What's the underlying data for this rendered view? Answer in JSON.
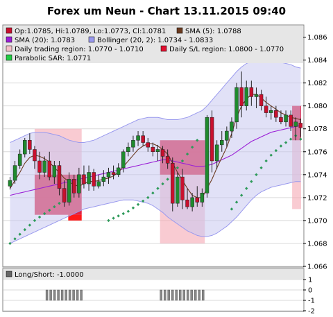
{
  "title": "Forex um Neun - Chart 13.11.2015 09:40",
  "colors": {
    "bull": "#1f8a2e",
    "bear": "#c8102e",
    "sma5": "#6b3a1f",
    "sma20": "#9a1ed6",
    "bollinger_fill": "#c8c8f0",
    "bollinger_line": "#9999ee",
    "trading_region": "#f5a9b4",
    "sl_region": "#e01030",
    "sar": "#2e9a5a",
    "plot_bg": "#ffffff",
    "grid": "#d9d9d9",
    "legend_bg": "#e6e6e6",
    "pos_bar": "#888888"
  },
  "legend": [
    {
      "icon": "candle-swatch",
      "color": "#c8102e",
      "text": "Op:1.0785, Hi:1.0789, Lo:1.0773, Cl:1.0781"
    },
    {
      "icon": "sma5-swatch",
      "color": "#6b3a1f",
      "text": "SMA (5): 1.0788"
    },
    {
      "icon": "sma20-swatch",
      "color": "#9a1ed6",
      "text": "SMA (20): 1.0783"
    },
    {
      "icon": "bollinger-swatch",
      "color": "#9999ee",
      "text": "Bollinger (20, 2): 1.0734 - 1.0833"
    },
    {
      "icon": "trading-region-swatch",
      "color": "#f5c0c8",
      "text": "Daily trading region: 1.0770 - 1.0710"
    },
    {
      "icon": "sl-region-swatch",
      "color": "#e01030",
      "text": "Daily S/L region: 1.0800 - 1.0770"
    },
    {
      "icon": "sar-swatch",
      "color": "#22cc44",
      "text": "Parabolic SAR: 1.0771"
    }
  ],
  "lower_legend": {
    "icon": "long-short-swatch",
    "color": "#666666",
    "text": "Long/Short: -1.0000"
  },
  "chart_data": [
    {
      "type": "candlestick",
      "title": "Forex um Neun - Chart 13.11.2015 09:40",
      "ylim": [
        1.066,
        1.087
      ],
      "y_ticks": [
        "1.066",
        "1.068",
        "1.070",
        "1.072",
        "1.074",
        "1.076",
        "1.078",
        "1.080",
        "1.082",
        "1.084",
        "1.086"
      ],
      "grid": true,
      "x_count": 60,
      "candles": [
        {
          "o": 1.073,
          "h": 1.0738,
          "l": 1.0727,
          "c": 1.0735
        },
        {
          "o": 1.0735,
          "h": 1.0752,
          "l": 1.0732,
          "c": 1.0748
        },
        {
          "o": 1.0748,
          "h": 1.0762,
          "l": 1.0745,
          "c": 1.0758
        },
        {
          "o": 1.0758,
          "h": 1.0772,
          "l": 1.0755,
          "c": 1.077
        },
        {
          "o": 1.077,
          "h": 1.0776,
          "l": 1.0758,
          "c": 1.0762
        },
        {
          "o": 1.0762,
          "h": 1.0765,
          "l": 1.0745,
          "c": 1.0752
        },
        {
          "o": 1.0752,
          "h": 1.076,
          "l": 1.0736,
          "c": 1.0742
        },
        {
          "o": 1.0742,
          "h": 1.0756,
          "l": 1.0738,
          "c": 1.0752
        },
        {
          "o": 1.0752,
          "h": 1.076,
          "l": 1.0735,
          "c": 1.0738
        },
        {
          "o": 1.0738,
          "h": 1.0752,
          "l": 1.0732,
          "c": 1.0748
        },
        {
          "o": 1.0748,
          "h": 1.0752,
          "l": 1.0722,
          "c": 1.0728
        },
        {
          "o": 1.0728,
          "h": 1.0735,
          "l": 1.0712,
          "c": 1.0716
        },
        {
          "o": 1.0716,
          "h": 1.0742,
          "l": 1.0713,
          "c": 1.0736
        },
        {
          "o": 1.0736,
          "h": 1.074,
          "l": 1.072,
          "c": 1.0724
        },
        {
          "o": 1.0724,
          "h": 1.0746,
          "l": 1.072,
          "c": 1.074
        },
        {
          "o": 1.074,
          "h": 1.0748,
          "l": 1.0728,
          "c": 1.0732
        },
        {
          "o": 1.0732,
          "h": 1.0748,
          "l": 1.0726,
          "c": 1.0742
        },
        {
          "o": 1.0742,
          "h": 1.0745,
          "l": 1.0726,
          "c": 1.073
        },
        {
          "o": 1.073,
          "h": 1.074,
          "l": 1.0728,
          "c": 1.0734
        },
        {
          "o": 1.0734,
          "h": 1.0744,
          "l": 1.073,
          "c": 1.0738
        },
        {
          "o": 1.0738,
          "h": 1.0746,
          "l": 1.0732,
          "c": 1.0742
        },
        {
          "o": 1.0742,
          "h": 1.0748,
          "l": 1.0736,
          "c": 1.074
        },
        {
          "o": 1.074,
          "h": 1.075,
          "l": 1.0738,
          "c": 1.0746
        },
        {
          "o": 1.0746,
          "h": 1.0762,
          "l": 1.0742,
          "c": 1.076
        },
        {
          "o": 1.076,
          "h": 1.0768,
          "l": 1.0756,
          "c": 1.0764
        },
        {
          "o": 1.0764,
          "h": 1.0774,
          "l": 1.076,
          "c": 1.077
        },
        {
          "o": 1.077,
          "h": 1.0778,
          "l": 1.0765,
          "c": 1.0774
        },
        {
          "o": 1.0774,
          "h": 1.0778,
          "l": 1.0765,
          "c": 1.0768
        },
        {
          "o": 1.0768,
          "h": 1.0772,
          "l": 1.076,
          "c": 1.0764
        },
        {
          "o": 1.0764,
          "h": 1.0768,
          "l": 1.0756,
          "c": 1.076
        },
        {
          "o": 1.076,
          "h": 1.0766,
          "l": 1.0752,
          "c": 1.0762
        },
        {
          "o": 1.0762,
          "h": 1.0765,
          "l": 1.075,
          "c": 1.0756
        },
        {
          "o": 1.0756,
          "h": 1.0762,
          "l": 1.0745,
          "c": 1.075
        },
        {
          "o": 1.075,
          "h": 1.0755,
          "l": 1.0708,
          "c": 1.0715
        },
        {
          "o": 1.0715,
          "h": 1.0742,
          "l": 1.0712,
          "c": 1.0738
        },
        {
          "o": 1.0738,
          "h": 1.0745,
          "l": 1.071,
          "c": 1.0718
        },
        {
          "o": 1.0718,
          "h": 1.0728,
          "l": 1.071,
          "c": 1.0712
        },
        {
          "o": 1.0712,
          "h": 1.0724,
          "l": 1.0708,
          "c": 1.072
        },
        {
          "o": 1.072,
          "h": 1.073,
          "l": 1.0712,
          "c": 1.0716
        },
        {
          "o": 1.0716,
          "h": 1.0728,
          "l": 1.0712,
          "c": 1.0724
        },
        {
          "o": 1.0724,
          "h": 1.0792,
          "l": 1.072,
          "c": 1.079
        },
        {
          "o": 1.079,
          "h": 1.0796,
          "l": 1.0742,
          "c": 1.0752
        },
        {
          "o": 1.0752,
          "h": 1.077,
          "l": 1.0745,
          "c": 1.0766
        },
        {
          "o": 1.0766,
          "h": 1.0778,
          "l": 1.076,
          "c": 1.077
        },
        {
          "o": 1.077,
          "h": 1.0782,
          "l": 1.0764,
          "c": 1.0778
        },
        {
          "o": 1.0778,
          "h": 1.079,
          "l": 1.0772,
          "c": 1.0786
        },
        {
          "o": 1.0786,
          "h": 1.082,
          "l": 1.078,
          "c": 1.0816
        },
        {
          "o": 1.0816,
          "h": 1.083,
          "l": 1.079,
          "c": 1.08
        },
        {
          "o": 1.08,
          "h": 1.0822,
          "l": 1.0796,
          "c": 1.0816
        },
        {
          "o": 1.0816,
          "h": 1.0822,
          "l": 1.08,
          "c": 1.0808
        },
        {
          "o": 1.0808,
          "h": 1.0816,
          "l": 1.0798,
          "c": 1.081
        },
        {
          "o": 1.081,
          "h": 1.0814,
          "l": 1.0796,
          "c": 1.08
        },
        {
          "o": 1.08,
          "h": 1.0808,
          "l": 1.079,
          "c": 1.0794
        },
        {
          "o": 1.0794,
          "h": 1.08,
          "l": 1.0788,
          "c": 1.0796
        },
        {
          "o": 1.0796,
          "h": 1.08,
          "l": 1.0786,
          "c": 1.079
        },
        {
          "o": 1.079,
          "h": 1.0796,
          "l": 1.0784,
          "c": 1.0786
        },
        {
          "o": 1.0786,
          "h": 1.0796,
          "l": 1.0782,
          "c": 1.0792
        },
        {
          "o": 1.0792,
          "h": 1.0796,
          "l": 1.0778,
          "c": 1.0782
        },
        {
          "o": 1.0782,
          "h": 1.079,
          "l": 1.077,
          "c": 1.0786
        },
        {
          "o": 1.0785,
          "h": 1.0789,
          "l": 1.0773,
          "c": 1.0781
        }
      ],
      "sma5": [
        1.0728,
        1.0735,
        1.0742,
        1.075,
        1.0755,
        1.0757,
        1.0756,
        1.0754,
        1.0751,
        1.0746,
        1.0742,
        1.0737,
        1.0734,
        1.0731,
        1.073,
        1.0732,
        1.0734,
        1.0734,
        1.0735,
        1.0736,
        1.0737,
        1.0739,
        1.0742,
        1.0747,
        1.0752,
        1.0757,
        1.0762,
        1.0765,
        1.0767,
        1.0767,
        1.0765,
        1.0762,
        1.0758,
        1.075,
        1.0742,
        1.0735,
        1.0728,
        1.0722,
        1.072,
        1.072,
        1.0728,
        1.0736,
        1.0746,
        1.0755,
        1.0764,
        1.0776,
        1.079,
        1.08,
        1.0806,
        1.081,
        1.081,
        1.0807,
        1.0803,
        1.08,
        1.0797,
        1.0794,
        1.0792,
        1.079,
        1.0789,
        1.0788
      ],
      "sma20": [
        1.0722,
        1.0723,
        1.0724,
        1.0725,
        1.0726,
        1.0727,
        1.0728,
        1.0729,
        1.073,
        1.0731,
        1.0732,
        1.0733,
        1.0734,
        1.0735,
        1.0736,
        1.0737,
        1.0738,
        1.0739,
        1.074,
        1.0741,
        1.0742,
        1.0743,
        1.0744,
        1.0745,
        1.0746,
        1.0747,
        1.0748,
        1.0749,
        1.075,
        1.0751,
        1.0752,
        1.0753,
        1.0753,
        1.0752,
        1.0751,
        1.075,
        1.0749,
        1.0748,
        1.0747,
        1.0747,
        1.0748,
        1.0749,
        1.0751,
        1.0753,
        1.0755,
        1.0757,
        1.076,
        1.0763,
        1.0766,
        1.0769,
        1.0771,
        1.0773,
        1.0775,
        1.0777,
        1.0778,
        1.0779,
        1.078,
        1.0781,
        1.0782,
        1.0783
      ],
      "bb_upper": [
        1.0768,
        1.077,
        1.0772,
        1.0774,
        1.0776,
        1.0777,
        1.0777,
        1.0777,
        1.0776,
        1.0775,
        1.0774,
        1.0772,
        1.077,
        1.0769,
        1.0768,
        1.0768,
        1.0769,
        1.077,
        1.0772,
        1.0774,
        1.0776,
        1.0778,
        1.078,
        1.0782,
        1.0784,
        1.0786,
        1.0788,
        1.0789,
        1.079,
        1.079,
        1.079,
        1.0789,
        1.0788,
        1.0788,
        1.0788,
        1.0789,
        1.079,
        1.0792,
        1.0794,
        1.0796,
        1.08,
        1.0805,
        1.081,
        1.0815,
        1.082,
        1.0825,
        1.083,
        1.0834,
        1.0837,
        1.0839,
        1.084,
        1.0841,
        1.0841,
        1.084,
        1.0839,
        1.0838,
        1.0837,
        1.0836,
        1.0834,
        1.0833
      ],
      "bb_lower": [
        1.068,
        1.0682,
        1.0684,
        1.0686,
        1.0688,
        1.069,
        1.0692,
        1.0694,
        1.0696,
        1.0698,
        1.07,
        1.0702,
        1.0704,
        1.0706,
        1.0708,
        1.071,
        1.0711,
        1.0712,
        1.0713,
        1.0714,
        1.0715,
        1.0716,
        1.0717,
        1.0718,
        1.0718,
        1.0718,
        1.0717,
        1.0716,
        1.0715,
        1.0713,
        1.071,
        1.0707,
        1.0703,
        1.07,
        1.0697,
        1.0694,
        1.0691,
        1.0689,
        1.0687,
        1.0686,
        1.0686,
        1.0687,
        1.0689,
        1.0692,
        1.0695,
        1.0699,
        1.0703,
        1.0708,
        1.0713,
        1.0718,
        1.0722,
        1.0725,
        1.0727,
        1.0729,
        1.073,
        1.0731,
        1.0732,
        1.0733,
        1.0734,
        1.0734
      ],
      "sar": [
        1.068,
        1.0684,
        1.0688,
        1.0692,
        1.0696,
        1.07,
        1.0703,
        1.0706,
        1.0709,
        1.0712,
        1.0715,
        1.0718,
        1.0721,
        null,
        null,
        null,
        null,
        null,
        null,
        null,
        1.07,
        1.0702,
        1.0704,
        1.0706,
        1.0708,
        1.0711,
        1.0714,
        1.0717,
        1.072,
        1.0724,
        1.0728,
        1.0732,
        1.0736,
        1.074,
        1.0746,
        1.0752,
        1.0758,
        1.0764,
        1.077,
        null,
        null,
        null,
        null,
        null,
        null,
        1.071,
        1.0716,
        1.0722,
        1.0728,
        1.0734,
        1.074,
        1.0746,
        1.0752,
        1.0757,
        1.0761,
        1.0765,
        1.0768,
        1.0771,
        1.0774,
        1.0771
      ],
      "regions": [
        {
          "name": "trading-region",
          "x_from": 13,
          "x_to": 34,
          "y_high": 1.078,
          "y_low": 1.0705,
          "color": "#f5a9b4"
        },
        {
          "name": "sl-region",
          "x_from": 13,
          "x_to": 34,
          "y_high": 1.074,
          "y_low": 1.0705,
          "color": "#e01030"
        },
        {
          "name": "sl-region-tail",
          "x_from": 28,
          "x_to": 34,
          "y_high": 1.0705,
          "y_low": 1.07,
          "color": "#ff0000"
        },
        {
          "name": "trading-region",
          "x_from": 69,
          "x_to": 89,
          "y_high": 1.077,
          "y_low": 1.068,
          "color": "#f5a9b4"
        },
        {
          "name": "sl-region",
          "x_from": 69,
          "x_to": 89,
          "y_high": 1.077,
          "y_low": 1.074,
          "color": "#e01030"
        },
        {
          "name": "trading-region",
          "x_from": 128,
          "x_to": 132,
          "y_high": 1.08,
          "y_low": 1.071,
          "color": "#f5a9b4"
        },
        {
          "name": "sl-region",
          "x_from": 128,
          "x_to": 132,
          "y_high": 1.08,
          "y_low": 1.077,
          "color": "#e01030"
        }
      ],
      "x_domain": [
        0,
        132
      ]
    },
    {
      "type": "bar",
      "title": "Long/Short: -1.0000",
      "ylim": [
        -2,
        1
      ],
      "y_ticks": [
        "1",
        "0",
        "-1",
        "-2"
      ],
      "grid": true,
      "series": [
        {
          "segments": [
            {
              "x_from": 18,
              "x_to": 34,
              "value": -1
            },
            {
              "x_from": 69,
              "x_to": 89,
              "value": -1
            }
          ]
        }
      ]
    }
  ]
}
